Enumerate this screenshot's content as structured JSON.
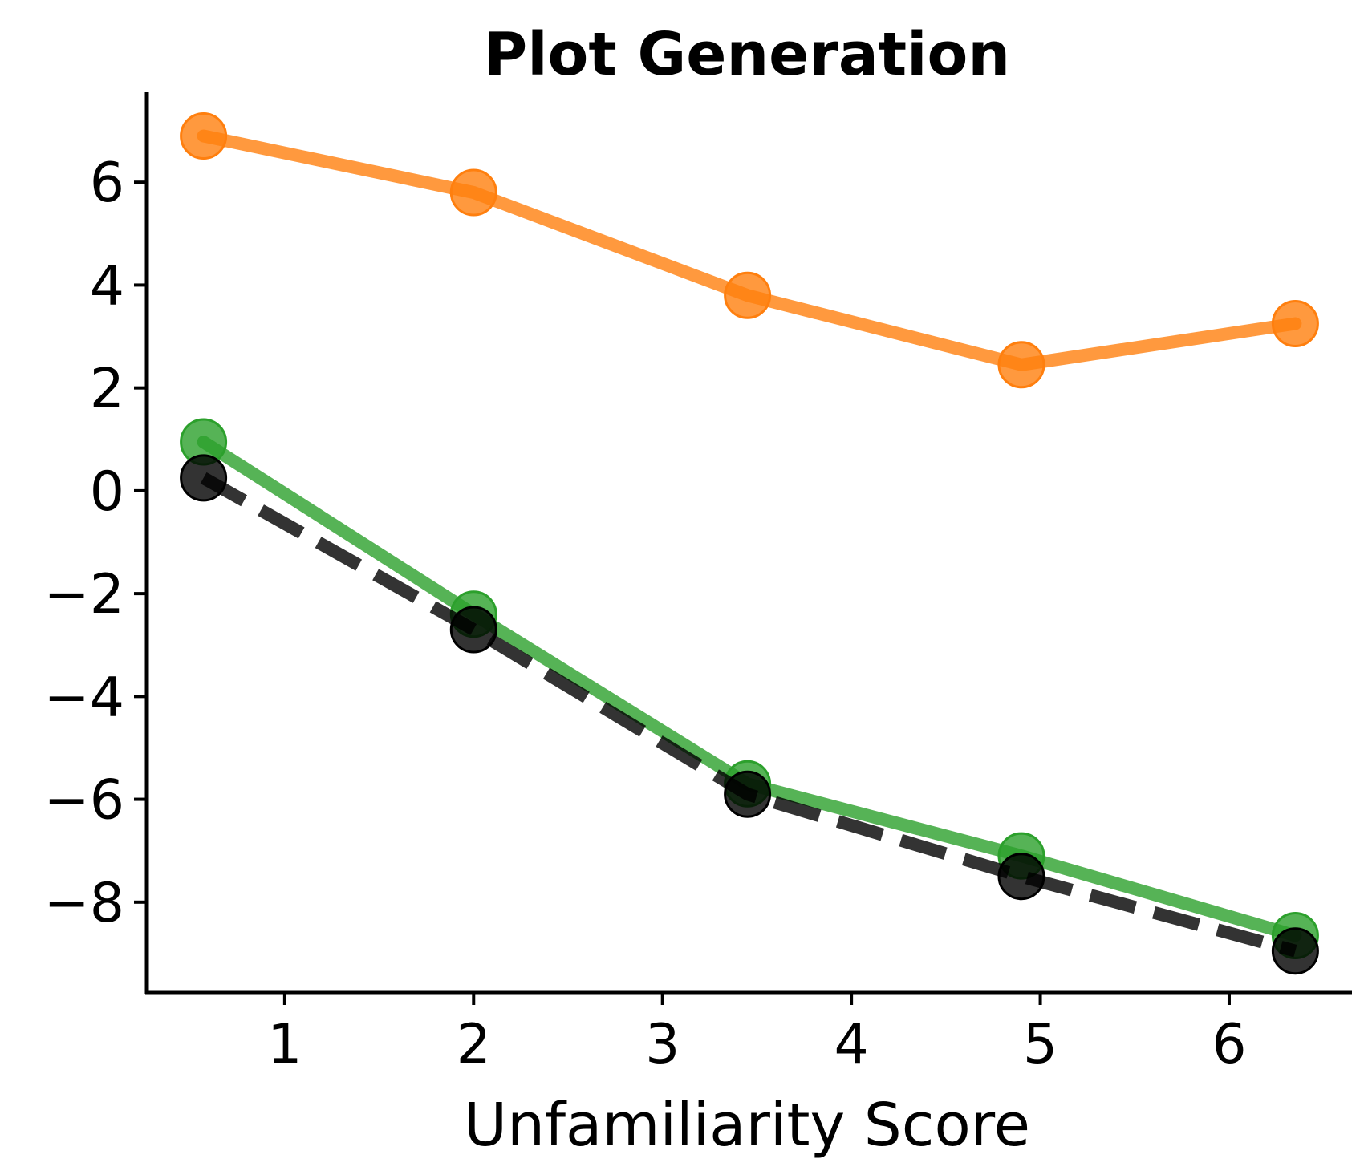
{
  "chart_data": {
    "type": "line",
    "title": "Plot Generation",
    "xlabel": "Unfamiliarity Score",
    "ylabel": "",
    "xlim": [
      0.27,
      6.65
    ],
    "ylim": [
      -9.75,
      7.75
    ],
    "xticks": [
      1,
      2,
      3,
      4,
      5,
      6
    ],
    "yticks": [
      -8,
      -6,
      -4,
      -2,
      0,
      2,
      4,
      6
    ],
    "xtick_labels": [
      "1",
      "2",
      "3",
      "4",
      "5",
      "6"
    ],
    "ytick_labels": [
      "−8",
      "−6",
      "−4",
      "−2",
      "0",
      "2",
      "4",
      "6"
    ],
    "grid": false,
    "series": [
      {
        "name": "orange",
        "color": "#ff7f0e",
        "style": "solid",
        "x": [
          0.57,
          2.0,
          3.45,
          4.9,
          6.35
        ],
        "y": [
          6.9,
          5.8,
          3.8,
          2.45,
          3.25
        ]
      },
      {
        "name": "green",
        "color": "#2ca02c",
        "style": "solid",
        "x": [
          0.57,
          2.0,
          3.45,
          4.9,
          6.35
        ],
        "y": [
          0.95,
          -2.4,
          -5.7,
          -7.1,
          -8.65
        ]
      },
      {
        "name": "black",
        "color": "#000000",
        "style": "dashed",
        "x": [
          0.57,
          2.0,
          3.45,
          4.9,
          6.35
        ],
        "y": [
          0.25,
          -2.7,
          -5.9,
          -7.5,
          -8.95
        ]
      }
    ]
  }
}
